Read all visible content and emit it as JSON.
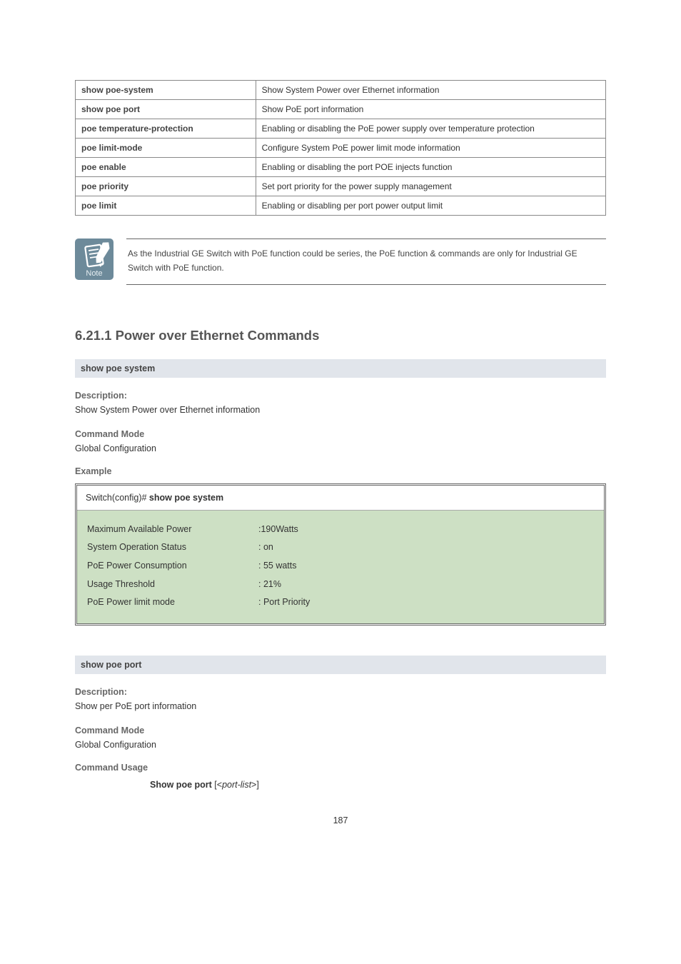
{
  "cmd_table": {
    "rows": [
      {
        "left": "show poe-system",
        "right": "Show System Power over Ethernet information"
      },
      {
        "left": "show poe port",
        "right": "Show PoE port information"
      },
      {
        "left": "poe temperature-protection",
        "right": "Enabling or disabling the PoE power supply over temperature protection"
      },
      {
        "left": "poe limit-mode",
        "right": "Configure System PoE power limit mode information"
      },
      {
        "left": "poe enable",
        "right": "Enabling or disabling the port POE injects function"
      },
      {
        "left": "poe priority",
        "right": "Set port priority for the power supply management"
      },
      {
        "left": "poe limit",
        "right": "Enabling or disabling per port power output limit"
      }
    ]
  },
  "note": {
    "icon_label": "Note",
    "icon_bg": "#6d8a9a",
    "text": "As the Industrial GE Switch with PoE function could be series, the PoE function & commands are only for Industrial GE Switch with PoE function."
  },
  "section_heading": "6.21.1 Power over Ethernet Commands",
  "section1": {
    "bar": "show poe system",
    "desc_label": "Description:",
    "desc_text": "Show System Power over Ethernet information",
    "mode_label": "Command Mode",
    "mode_text": "Global Configuration",
    "example_label": "Example",
    "terminal": {
      "prompt_prefix": "Switch(config)#",
      "prompt_bold": " show poe system",
      "rows": [
        {
          "k": "Maximum Available Power",
          "v": ":190Watts"
        },
        {
          "k": "System Operation Status",
          "v": ": on"
        },
        {
          "k": "PoE Power Consumption",
          "v": ": 55 watts"
        },
        {
          "k": "Usage Threshold",
          "v": ": 21%"
        },
        {
          "k": "PoE Power limit mode",
          "v": ": Port Priority"
        }
      ]
    }
  },
  "section2": {
    "bar": "show poe port",
    "desc_label": "Description:",
    "desc_text": "Show per PoE port information",
    "mode_label": "Command Mode",
    "mode_text": "Global Configuration",
    "usage_label": "Command Usage",
    "usage_bold": "Show poe port",
    "usage_plain": " [<",
    "usage_italic": "port-list",
    "usage_tail": ">]"
  },
  "page_number": "187",
  "colors": {
    "bar_bg": "#e1e5eb",
    "terminal_bg": "#cde0c4",
    "border": "#666666"
  }
}
